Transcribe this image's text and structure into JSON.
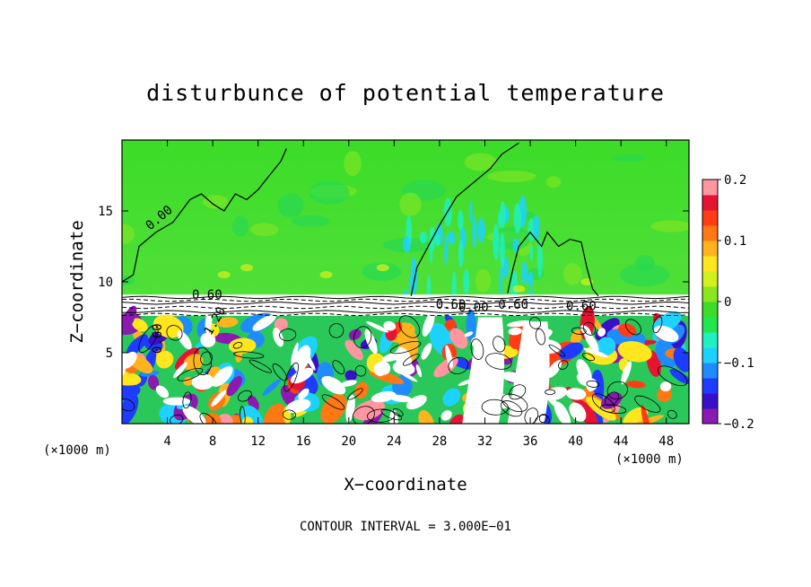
{
  "chart_data": {
    "type": "heatmap",
    "title": "disturbunce of potential temperature",
    "xlabel": "X−coordinate",
    "ylabel": "Z−coordinate",
    "x_unit_left": "(×1000 m)",
    "x_unit_right": "(×1000 m)",
    "xlim": [
      0,
      50
    ],
    "ylim": [
      0,
      20
    ],
    "x_ticks": [
      "4",
      "8",
      "12",
      "16",
      "20",
      "24",
      "28",
      "32",
      "36",
      "40",
      "44",
      "48"
    ],
    "x_tick_values": [
      4,
      8,
      12,
      16,
      20,
      24,
      28,
      32,
      36,
      40,
      44,
      48
    ],
    "y_ticks": [
      "5",
      "10",
      "15"
    ],
    "y_tick_values": [
      5,
      10,
      15
    ],
    "colorbar": {
      "min": -0.2,
      "max": 0.2,
      "tick_labels": [
        "0.2",
        "0.1",
        "0",
        "−0.1",
        "−0.2"
      ],
      "tick_values": [
        0.2,
        0.1,
        0,
        -0.1,
        -0.2
      ],
      "colors": [
        "#8a1ab0",
        "#3a0fc8",
        "#1e3cff",
        "#1e8cff",
        "#1ed2ff",
        "#20f0c0",
        "#20e650",
        "#3cdc28",
        "#8ce61e",
        "#d2f01e",
        "#ffe61e",
        "#ffb41e",
        "#ff7814",
        "#ff3c14",
        "#e61432",
        "#ff96a0"
      ]
    },
    "contour_labels": [
      "0.00",
      "0.60",
      "0.60",
      "1.20",
      "0.60",
      "0.60",
      "0.00",
      "0.60"
    ],
    "footer": "CONTOUR INTERVAL = 3.000E−01"
  }
}
